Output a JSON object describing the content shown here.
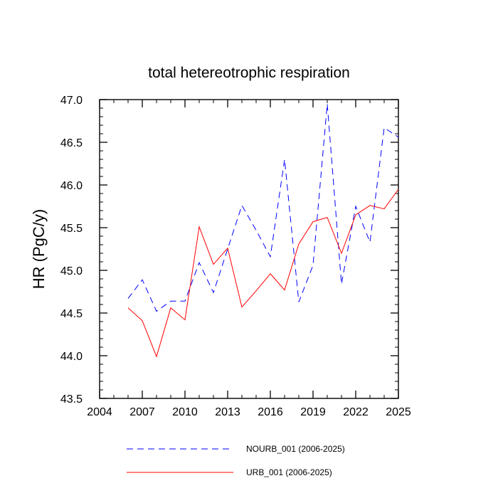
{
  "chart_data": {
    "type": "line",
    "title": "total hetereotrophic respiration",
    "xlabel": "",
    "ylabel": "HR  (PgC/y)",
    "xlim": [
      2004,
      2025
    ],
    "ylim": [
      43.5,
      47.0
    ],
    "xticks": [
      2004,
      2007,
      2010,
      2013,
      2016,
      2019,
      2022,
      2025
    ],
    "xtick_labels": [
      "2004",
      "2007",
      "2010",
      "2013",
      "2016",
      "2019",
      "2022",
      "2025"
    ],
    "yticks": [
      43.5,
      44.0,
      44.5,
      45.0,
      45.5,
      46.0,
      46.5,
      47.0
    ],
    "ytick_labels": [
      "43.5",
      "44.0",
      "44.5",
      "45.0",
      "45.5",
      "46.0",
      "46.5",
      "47.0"
    ],
    "x": [
      2006,
      2007,
      2008,
      2009,
      2010,
      2011,
      2012,
      2013,
      2014,
      2015,
      2016,
      2017,
      2018,
      2019,
      2020,
      2021,
      2022,
      2023,
      2024,
      2025
    ],
    "series": [
      {
        "name": "NOURB_001 (2006-2025)",
        "legend_label": "NOURB_001 (2006-2025)",
        "color": "#0000ff",
        "style": "dashed",
        "values": [
          44.67,
          44.89,
          44.52,
          44.64,
          44.64,
          45.09,
          44.74,
          45.25,
          45.76,
          45.47,
          45.16,
          46.3,
          44.63,
          45.06,
          46.95,
          44.84,
          45.75,
          45.33,
          46.67,
          46.56
        ]
      },
      {
        "name": "URB_001 (2006-2025)",
        "legend_label": "URB_001 (2006-2025)",
        "color": "#ff0000",
        "style": "solid",
        "values": [
          44.56,
          44.41,
          43.99,
          44.56,
          44.42,
          45.51,
          45.07,
          45.26,
          44.57,
          44.76,
          44.96,
          44.77,
          45.31,
          45.57,
          45.62,
          45.2,
          45.65,
          45.76,
          45.72,
          45.95
        ]
      }
    ],
    "legend_position": "bottom"
  }
}
